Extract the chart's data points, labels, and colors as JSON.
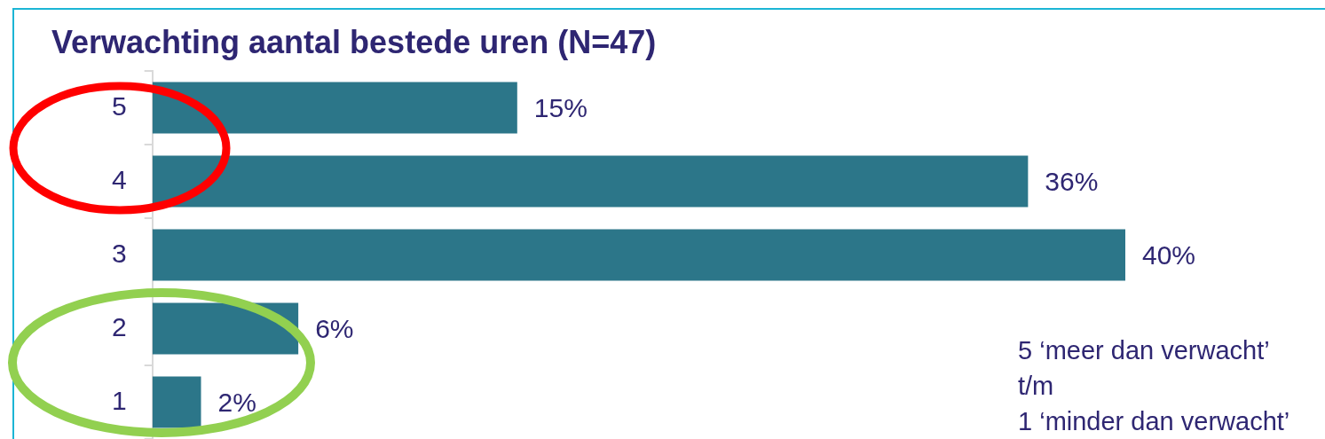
{
  "chart_data": {
    "type": "bar",
    "orientation": "horizontal",
    "title": "Verwachting aantal bestede uren (N=47)",
    "categories": [
      "5",
      "4",
      "3",
      "2",
      "1"
    ],
    "values": [
      15,
      36,
      40,
      6,
      2
    ],
    "value_labels": [
      "15%",
      "36%",
      "40%",
      "6%",
      "2%"
    ],
    "color": "#2c7689",
    "tick_labels": "y",
    "annotations": [
      "5 ‘meer dan verwacht’",
      "t/m",
      "1 ‘minder dan verwacht’"
    ]
  }
}
